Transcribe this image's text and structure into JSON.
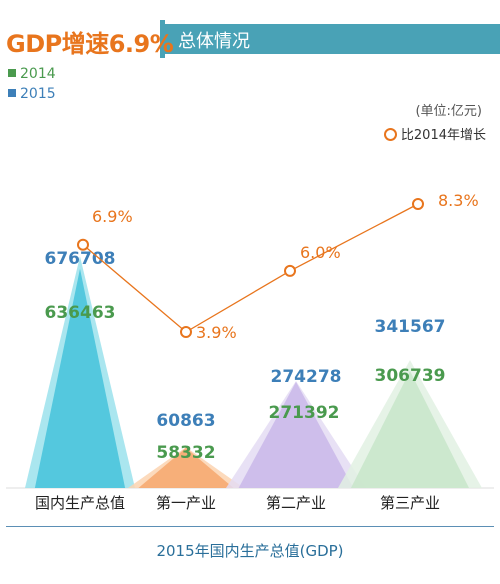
{
  "header": {
    "title": "GDP增速6.9%",
    "subtitle": "总体情况"
  },
  "legend": {
    "items": [
      {
        "label": "2014",
        "color": "#4a9a4e"
      },
      {
        "label": "2015",
        "color": "#3d7fb8"
      }
    ]
  },
  "unit_label": "(单位:亿元)",
  "growth_legend_label": "比2014年增长",
  "footer_label": "2015年国内生产总值(GDP)",
  "colors": {
    "accent_orange": "#e8751d",
    "header_teal": "#49a2b6",
    "label_2014": "#4a9a4e",
    "label_2015": "#3d7fb8"
  },
  "chart_data": {
    "type": "bar",
    "categories": [
      "国内生产总值",
      "第一产业",
      "第二产业",
      "第三产业"
    ],
    "series": [
      {
        "name": "2014",
        "values": [
          636463,
          58332,
          271392,
          306739
        ]
      },
      {
        "name": "2015",
        "values": [
          676708,
          60863,
          274278,
          341567
        ]
      }
    ],
    "value_labels_2014": [
      "636463",
      "58332",
      "271392",
      "306739"
    ],
    "value_labels_2015": [
      "676708",
      "60863",
      "274278",
      "341567"
    ],
    "growth": {
      "name": "比2014年增长",
      "values": [
        6.9,
        3.9,
        6.0,
        8.3
      ],
      "labels": [
        "6.9%",
        "3.9%",
        "6.0%",
        "8.3%"
      ]
    }
  }
}
